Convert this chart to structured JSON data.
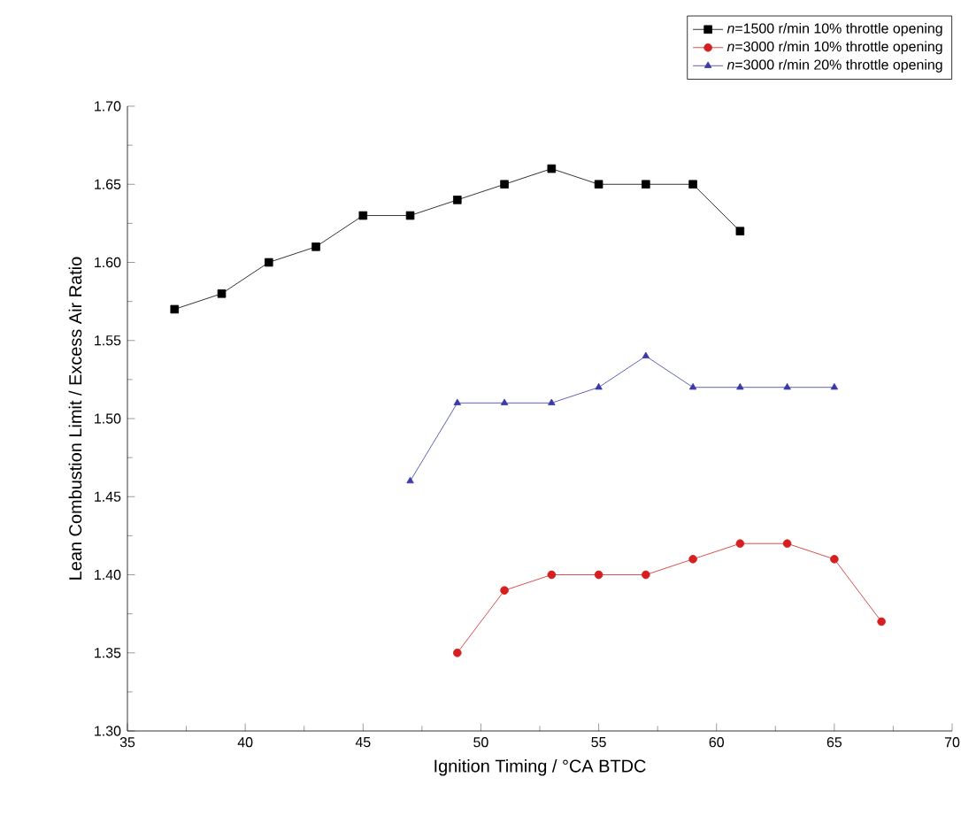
{
  "chart_data": {
    "type": "line",
    "xlabel": "Ignition Timing / °CA BTDC",
    "ylabel": "Lean Combustion Limit / Excess Air Ratio",
    "xlim": [
      35,
      70
    ],
    "xticks": [
      35,
      40,
      45,
      50,
      55,
      60,
      65,
      70
    ],
    "ylim": [
      1.3,
      1.7
    ],
    "yticks": [
      {
        "value": 1.3,
        "label": "1.30"
      },
      {
        "value": 1.35,
        "label": "1.35"
      },
      {
        "value": 1.4,
        "label": "1.40"
      },
      {
        "value": 1.45,
        "label": "1.45"
      },
      {
        "value": 1.5,
        "label": "1.50"
      },
      {
        "value": 1.55,
        "label": "1.55"
      },
      {
        "value": 1.6,
        "label": "1.60"
      },
      {
        "value": 1.65,
        "label": "1.65"
      },
      {
        "value": 1.7,
        "label": "1.70"
      }
    ],
    "legend": "top right",
    "grid": false,
    "series": [
      {
        "name": "*n*=1500 r/min 10% throttle opening",
        "color": "#000000",
        "marker": "square",
        "x": [
          37,
          39,
          41,
          43,
          45,
          47,
          49,
          51,
          53,
          55,
          57,
          59,
          61
        ],
        "values": [
          1.57,
          1.58,
          1.6,
          1.61,
          1.63,
          1.63,
          1.64,
          1.65,
          1.66,
          1.65,
          1.65,
          1.65,
          1.62
        ]
      },
      {
        "name": "*n*=3000 r/min 10% throttle opening",
        "color": "#d42020",
        "marker": "circle",
        "x": [
          49,
          51,
          53,
          55,
          57,
          59,
          61,
          63,
          65,
          67
        ],
        "values": [
          1.35,
          1.39,
          1.4,
          1.4,
          1.4,
          1.41,
          1.42,
          1.42,
          1.41,
          1.37
        ]
      },
      {
        "name": "*n*=3000 r/min 20% throttle opening",
        "color": "#3a3aa8",
        "marker": "triangle",
        "x": [
          47,
          49,
          51,
          53,
          55,
          57,
          59,
          61,
          63,
          65
        ],
        "values": [
          1.46,
          1.51,
          1.51,
          1.51,
          1.52,
          1.54,
          1.52,
          1.52,
          1.52,
          1.52
        ]
      }
    ]
  }
}
